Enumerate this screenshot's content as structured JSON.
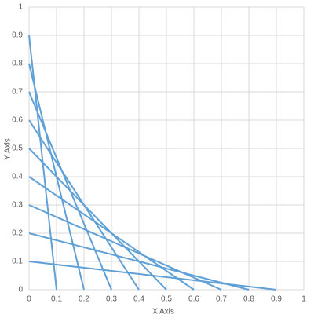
{
  "chart_data": {
    "type": "line",
    "x_label": "X Axis",
    "y_label": "Y Axis",
    "xlim": [
      0,
      1
    ],
    "ylim": [
      0,
      1
    ],
    "xticks": [
      0,
      0.1,
      0.2,
      0.3,
      0.4,
      0.5,
      0.6,
      0.7,
      0.8,
      0.9,
      1
    ],
    "yticks": [
      0,
      0.1,
      0.2,
      0.3,
      0.4,
      0.5,
      0.6,
      0.7,
      0.8,
      0.9,
      1
    ],
    "grid": true,
    "series": [
      {
        "color": "#5fa0d6",
        "x": [
          0,
          0.9
        ],
        "values": [
          0.1,
          0
        ]
      },
      {
        "color": "#5fa0d6",
        "x": [
          0,
          0.8
        ],
        "values": [
          0.2,
          0
        ]
      },
      {
        "color": "#5fa0d6",
        "x": [
          0,
          0.7
        ],
        "values": [
          0.3,
          0
        ]
      },
      {
        "color": "#5fa0d6",
        "x": [
          0,
          0.6
        ],
        "values": [
          0.4,
          0
        ]
      },
      {
        "color": "#5fa0d6",
        "x": [
          0,
          0.5
        ],
        "values": [
          0.5,
          0
        ]
      },
      {
        "color": "#5fa0d6",
        "x": [
          0,
          0.4
        ],
        "values": [
          0.6,
          0
        ]
      },
      {
        "color": "#5fa0d6",
        "x": [
          0,
          0.3
        ],
        "values": [
          0.7,
          0
        ]
      },
      {
        "color": "#5fa0d6",
        "x": [
          0,
          0.2
        ],
        "values": [
          0.8,
          0
        ]
      },
      {
        "color": "#5fa0d6",
        "x": [
          0,
          0.1
        ],
        "values": [
          0.9,
          0
        ]
      }
    ]
  }
}
